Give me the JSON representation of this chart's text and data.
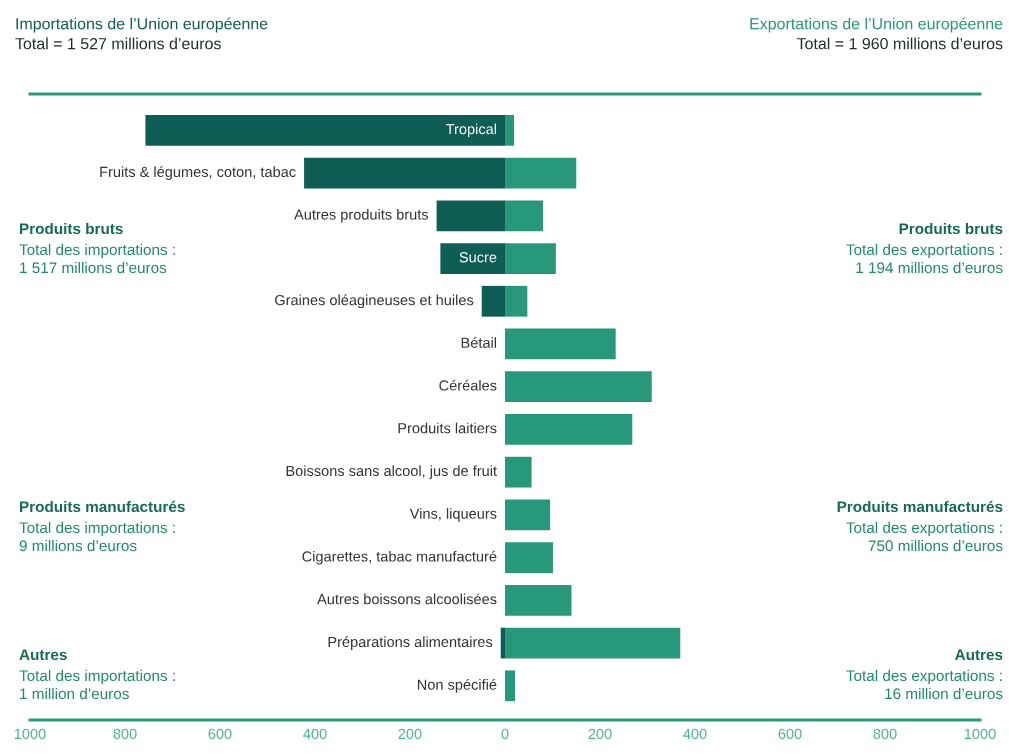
{
  "chart_data": {
    "type": "bar",
    "orientation": "horizontal",
    "categories": [
      "Tropical",
      "Fruits & légumes, coton, tabac",
      "Autres produits bruts",
      "Sucre",
      "Graines oléagineuses et huiles",
      "Bétail",
      "Céréales",
      "Produits laitiers",
      "Boissons sans alcool, jus de fruit",
      "Vins, liqueurs",
      "Cigarettes, tabac manufacturé",
      "Autres boissons alcoolisées",
      "Préparations alimentaires",
      "Non spécifié"
    ],
    "series": [
      {
        "name": "Importations de l’Union européenne",
        "color": "#0f5e55",
        "values": [
          -757,
          -423,
          -144,
          -136,
          -49,
          null,
          null,
          null,
          null,
          null,
          null,
          null,
          -9,
          null
        ]
      },
      {
        "name": "Exportations de l’Union européenne",
        "color": "#28987a",
        "values": [
          19,
          150,
          80,
          107,
          47,
          233,
          309,
          268,
          56,
          95,
          101,
          140,
          369,
          21
        ]
      }
    ],
    "xlim": [
      -1000,
      1000
    ],
    "xticks": [
      {
        "value": -1000,
        "label": "1000"
      },
      {
        "value": -800,
        "label": "800"
      },
      {
        "value": -600,
        "label": "600"
      },
      {
        "value": -400,
        "label": "400"
      },
      {
        "value": -200,
        "label": "200"
      },
      0,
      200,
      400,
      600,
      800,
      1000
    ],
    "annotations": [
      "Total = 1 527 millions d’euros",
      "Total = 1 960 millions d’euros",
      "Produits bruts\nTotal des importations :\n1 517 millions d’euros",
      "Produits bruts\nTotal des exportations :\n1 194 millions d’euros",
      "Produits manufacturés\nTotal des importations :\n9 millions d’euros",
      "Produits manufacturés\nTotal des exportations :\n750 millions d’euros",
      "Autres\nTotal des importations :\n1 million d’euros",
      "Autres\nTotal des exportations :\n16 million d’euros"
    ],
    "grid": false,
    "legend": false
  }
}
